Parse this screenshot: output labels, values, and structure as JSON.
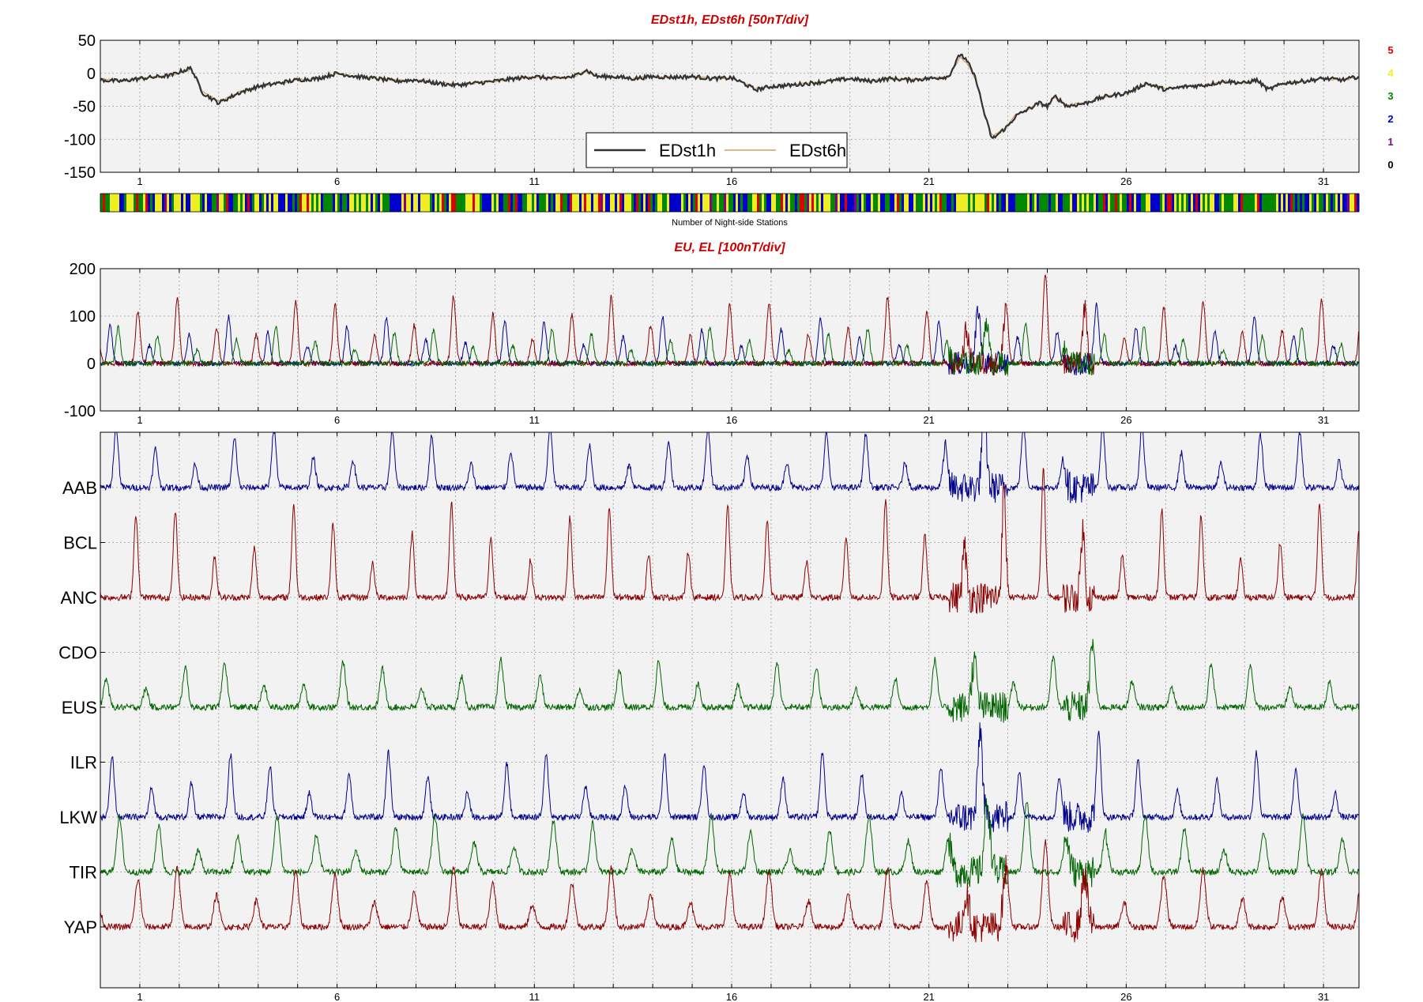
{
  "chart_data": [
    {
      "type": "line",
      "title": "EDst1h, EDst6h [50nT/div]",
      "xlabel": "",
      "ylabel": "",
      "xlim": [
        0,
        31.9
      ],
      "ylim": [
        -150,
        50
      ],
      "x_ticks": [
        1,
        6,
        11,
        16,
        21,
        26,
        31
      ],
      "y_ticks": [
        50,
        0,
        -50,
        -100,
        -150
      ],
      "grid": true,
      "legend": "bottom-center",
      "series": [
        {
          "name": "EDst1h",
          "color": "#333333",
          "x": [
            0,
            0.5,
            1,
            1.5,
            1.8,
            2,
            2.3,
            2.6,
            3,
            3.5,
            4,
            4.5,
            5,
            5.5,
            6,
            6.5,
            7,
            7.5,
            8,
            8.5,
            9,
            9.5,
            10,
            10.5,
            11,
            11.5,
            12,
            12.3,
            12.6,
            13,
            13.5,
            14,
            14.5,
            15,
            15.5,
            16,
            16.3,
            16.6,
            17,
            17.5,
            18,
            18.5,
            19,
            19.5,
            20,
            20.5,
            21,
            21.5,
            21.8,
            22,
            22.2,
            22.4,
            22.6,
            22.8,
            23,
            23.2,
            23.5,
            23.8,
            24,
            24.2,
            24.5,
            25,
            25.2,
            25.5,
            26,
            26.2,
            26.5,
            27,
            27.5,
            28,
            28.5,
            29,
            29.3,
            29.6,
            30,
            30.5,
            31,
            31.5,
            31.9
          ],
          "y": [
            -10,
            -12,
            -8,
            -5,
            -3,
            2,
            8,
            -30,
            -45,
            -30,
            -20,
            -15,
            -10,
            -8,
            0,
            -5,
            -8,
            -12,
            -10,
            -15,
            -18,
            -15,
            -12,
            -8,
            -5,
            -8,
            -5,
            5,
            -5,
            -5,
            -8,
            -5,
            -6,
            -5,
            -8,
            -7,
            -15,
            -25,
            -20,
            -18,
            -15,
            -12,
            -8,
            -12,
            -8,
            -10,
            -8,
            -5,
            30,
            15,
            -10,
            -60,
            -100,
            -90,
            -80,
            -65,
            -55,
            -45,
            -50,
            -35,
            -50,
            -45,
            -40,
            -35,
            -30,
            -25,
            -15,
            -25,
            -20,
            -18,
            -12,
            -15,
            -10,
            -25,
            -15,
            -12,
            -8,
            -10,
            -5
          ]
        },
        {
          "name": "EDst6h",
          "color": "#D4A05A",
          "x": [
            0,
            0.5,
            1,
            1.5,
            1.8,
            2,
            2.3,
            2.6,
            3,
            3.5,
            4,
            4.5,
            5,
            5.5,
            6,
            6.5,
            7,
            7.5,
            8,
            8.5,
            9,
            9.5,
            10,
            10.5,
            11,
            11.5,
            12,
            12.3,
            12.6,
            13,
            13.5,
            14,
            14.5,
            15,
            15.5,
            16,
            16.3,
            16.6,
            17,
            17.5,
            18,
            18.5,
            19,
            19.5,
            20,
            20.5,
            21,
            21.5,
            21.8,
            22,
            22.2,
            22.4,
            22.6,
            22.8,
            23,
            23.2,
            23.5,
            23.8,
            24,
            24.2,
            24.5,
            25,
            25.2,
            25.5,
            26,
            26.2,
            26.5,
            27,
            27.5,
            28,
            28.5,
            29,
            29.3,
            29.6,
            30,
            30.5,
            31,
            31.5,
            31.9
          ],
          "y": [
            -9,
            -11,
            -8,
            -5,
            -3,
            1,
            6,
            -28,
            -43,
            -29,
            -20,
            -15,
            -10,
            -8,
            -1,
            -5,
            -8,
            -11,
            -10,
            -14,
            -17,
            -15,
            -12,
            -8,
            -5,
            -8,
            -5,
            3,
            -5,
            -5,
            -8,
            -5,
            -6,
            -5,
            -8,
            -7,
            -14,
            -24,
            -20,
            -18,
            -15,
            -12,
            -8,
            -12,
            -8,
            -10,
            -8,
            -5,
            25,
            12,
            -12,
            -58,
            -95,
            -88,
            -78,
            -63,
            -54,
            -45,
            -48,
            -36,
            -48,
            -44,
            -40,
            -35,
            -30,
            -25,
            -16,
            -24,
            -20,
            -18,
            -12,
            -15,
            -11,
            -23,
            -15,
            -12,
            -8,
            -10,
            -6
          ]
        }
      ]
    },
    {
      "type": "heatmap",
      "title": "Number of Night-side Stations",
      "scale_labels": [
        "5",
        "4",
        "3",
        "2",
        "1",
        "0"
      ],
      "scale_colors": [
        "#DD0000",
        "#EEEE22",
        "#008800",
        "#0000CC",
        "#880088",
        "#000000"
      ],
      "dominant_values": [
        4,
        3,
        2
      ]
    },
    {
      "type": "line",
      "title": "EU, EL   [100nT/div]",
      "xlabel": "",
      "ylabel": "",
      "xlim": [
        0,
        31.9
      ],
      "ylim": [
        -100,
        200
      ],
      "x_ticks": [
        1,
        6,
        11,
        16,
        21,
        26,
        31
      ],
      "y_ticks": [
        200,
        100,
        0,
        -100
      ],
      "grid": true,
      "series": [
        {
          "color": "#00008B",
          "amplitude": 90
        },
        {
          "color": "#8B0000",
          "amplitude": 130
        },
        {
          "color": "#006400",
          "amplitude": 70
        }
      ]
    },
    {
      "type": "line",
      "title": "",
      "xlim": [
        0,
        31.9
      ],
      "x_ticks": [
        1,
        6,
        11,
        16,
        21,
        26,
        31
      ],
      "grid": true,
      "station_labels": [
        "AAB",
        "BCL",
        "ANC",
        "CDO",
        "EUS",
        "ILR",
        "LKW",
        "TIR",
        "YAP"
      ],
      "series": [
        {
          "name": "AAB",
          "color": "#00008B",
          "baseline_label": "AAB"
        },
        {
          "name": "ANC",
          "color": "#8B0000",
          "baseline_label": "ANC"
        },
        {
          "name": "EUS",
          "color": "#006400",
          "baseline_label": "EUS"
        },
        {
          "name": "LKW",
          "color": "#00008B",
          "baseline_label": "LKW"
        },
        {
          "name": "TIR",
          "color": "#006400",
          "baseline_label": "TIR"
        },
        {
          "name": "YAP",
          "color": "#8B0000",
          "baseline_label": "YAP"
        }
      ]
    }
  ]
}
